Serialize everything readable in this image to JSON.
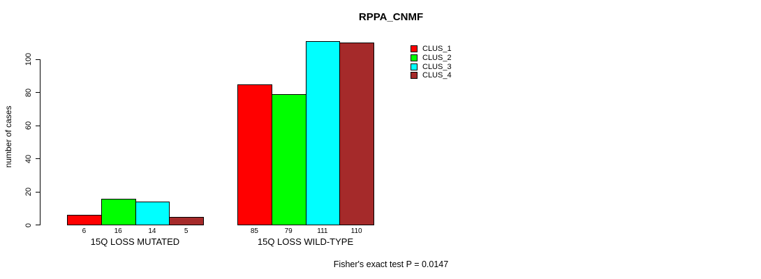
{
  "title": "RPPA_CNMF",
  "ylabel": "number of cases",
  "annotation": "Fisher's exact test P = 0.0147",
  "chart_data": {
    "type": "bar",
    "title": "RPPA_CNMF",
    "xlabel": "",
    "ylabel": "number of cases",
    "categories": [
      "15Q LOSS MUTATED",
      "15Q LOSS WILD-TYPE"
    ],
    "series": [
      {
        "name": "CLUS_1",
        "color": "#ff0000",
        "values": [
          6,
          85
        ]
      },
      {
        "name": "CLUS_2",
        "color": "#00ff00",
        "values": [
          16,
          79
        ]
      },
      {
        "name": "CLUS_3",
        "color": "#00ffff",
        "values": [
          14,
          111
        ]
      },
      {
        "name": "CLUS_4",
        "color": "#a52a2a",
        "values": [
          5,
          110
        ]
      }
    ],
    "bar_value_labels": [
      [
        6,
        16,
        14,
        5
      ],
      [
        85,
        79,
        111,
        110
      ]
    ],
    "yticks": [
      0,
      20,
      40,
      60,
      80,
      100
    ],
    "ylim": [
      0,
      111
    ],
    "grid": false,
    "legend_position": "inside-top-right",
    "annotation": "Fisher's exact test P = 0.0147"
  }
}
